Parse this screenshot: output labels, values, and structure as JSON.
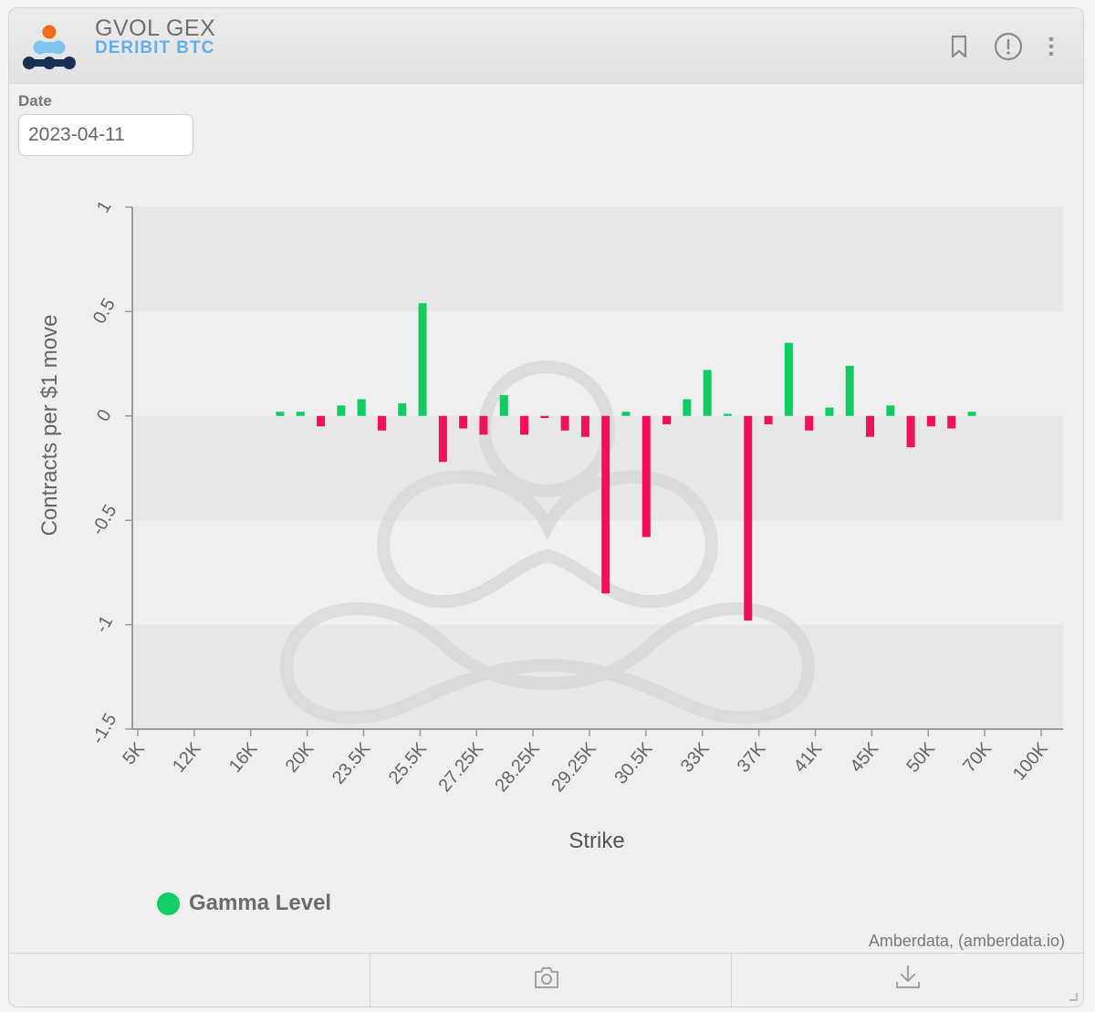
{
  "header": {
    "title": "GVOL GEX",
    "subtitle": "DERIBIT BTC",
    "icons": [
      "bookmark-icon",
      "info-icon",
      "more-icon"
    ]
  },
  "filters": {
    "date_label": "Date",
    "date_value": "2023-04-11"
  },
  "colors": {
    "positive": "#0fcc63",
    "negative": "#f0115a",
    "subtitle": "#5fb0f2"
  },
  "chart_data": {
    "type": "bar",
    "xlabel": "Strike",
    "ylabel": "Contracts per $1 move",
    "ylim": [
      -1.5,
      1
    ],
    "yticks": [
      "1",
      "0.5",
      "0",
      "-0.5",
      "-1",
      "-1.5"
    ],
    "xticks": [
      "5K",
      "12K",
      "16K",
      "20K",
      "23.5K",
      "25.5K",
      "27.25K",
      "28.25K",
      "29.25K",
      "30.5K",
      "33K",
      "37K",
      "41K",
      "45K",
      "50K",
      "70K",
      "100K"
    ],
    "legend": [
      "Gamma Level"
    ],
    "grid": "alternating horizontal bands",
    "values": [
      0.02,
      0.02,
      -0.05,
      0.05,
      0.08,
      -0.07,
      0.06,
      0.54,
      -0.22,
      -0.06,
      -0.09,
      0.1,
      -0.09,
      -0.01,
      -0.07,
      -0.1,
      -0.85,
      0.02,
      -0.58,
      -0.04,
      0.08,
      0.22,
      0.01,
      -0.98,
      -0.04,
      0.35,
      -0.07,
      0.04,
      0.24,
      -0.1,
      0.05,
      -0.15,
      -0.05,
      -0.06,
      0.02
    ]
  },
  "credit": "Amberdata, (amberdata.io)",
  "footer": {
    "icons": [
      "camera-icon",
      "download-icon"
    ]
  }
}
